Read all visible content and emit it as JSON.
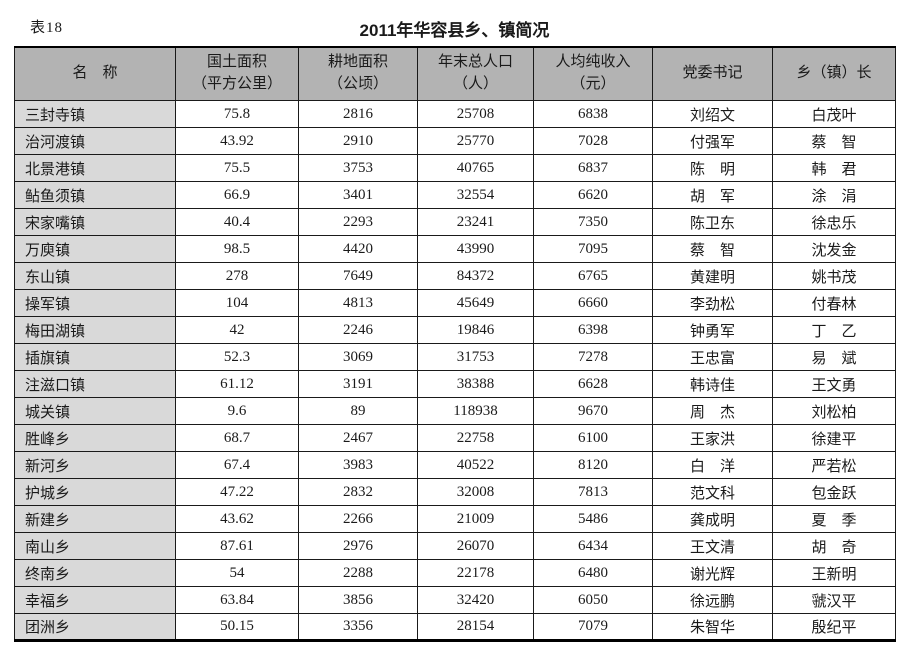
{
  "page": {
    "tag": "表18",
    "title": "2011年华容县乡、镇简况"
  },
  "colors": {
    "header_bg": "#b3b3b3",
    "name_column_bg": "#d9d9d9",
    "border": "#1a1a1a",
    "page_bg": "#ffffff"
  },
  "table": {
    "columns": [
      {
        "line1": "名　称",
        "line2": ""
      },
      {
        "line1": "国土面积",
        "line2": "（平方公里）"
      },
      {
        "line1": "耕地面积",
        "line2": "（公顷）"
      },
      {
        "line1": "年末总人口",
        "line2": "（人）"
      },
      {
        "line1": "人均纯收入",
        "line2": "（元）"
      },
      {
        "line1": "党委书记",
        "line2": ""
      },
      {
        "line1": "乡（镇）长",
        "line2": ""
      }
    ],
    "rows": [
      [
        "三封寺镇",
        "75.8",
        "2816",
        "25708",
        "6838",
        "刘绍文",
        "白茂叶"
      ],
      [
        "治河渡镇",
        "43.92",
        "2910",
        "25770",
        "7028",
        "付强军",
        "蔡　智"
      ],
      [
        "北景港镇",
        "75.5",
        "3753",
        "40765",
        "6837",
        "陈　明",
        "韩　君"
      ],
      [
        "鲇鱼须镇",
        "66.9",
        "3401",
        "32554",
        "6620",
        "胡　军",
        "涂　涓"
      ],
      [
        "宋家嘴镇",
        "40.4",
        "2293",
        "23241",
        "7350",
        "陈卫东",
        "徐忠乐"
      ],
      [
        "万庾镇",
        "98.5",
        "4420",
        "43990",
        "7095",
        "蔡　智",
        "沈发金"
      ],
      [
        "东山镇",
        "278",
        "7649",
        "84372",
        "6765",
        "黄建明",
        "姚书茂"
      ],
      [
        "操军镇",
        "104",
        "4813",
        "45649",
        "6660",
        "李劲松",
        "付春林"
      ],
      [
        "梅田湖镇",
        "42",
        "2246",
        "19846",
        "6398",
        "钟勇军",
        "丁　乙"
      ],
      [
        "插旗镇",
        "52.3",
        "3069",
        "31753",
        "7278",
        "王忠富",
        "易　斌"
      ],
      [
        "注滋口镇",
        "61.12",
        "3191",
        "38388",
        "6628",
        "韩诗佳",
        "王文勇"
      ],
      [
        "城关镇",
        "9.6",
        "89",
        "118938",
        "9670",
        "周　杰",
        "刘松柏"
      ],
      [
        "胜峰乡",
        "68.7",
        "2467",
        "22758",
        "6100",
        "王家洪",
        "徐建平"
      ],
      [
        "新河乡",
        "67.4",
        "3983",
        "40522",
        "8120",
        "白　洋",
        "严若松"
      ],
      [
        "护城乡",
        "47.22",
        "2832",
        "32008",
        "7813",
        "范文科",
        "包金跃"
      ],
      [
        "新建乡",
        "43.62",
        "2266",
        "21009",
        "5486",
        "龚成明",
        "夏　季"
      ],
      [
        "南山乡",
        "87.61",
        "2976",
        "26070",
        "6434",
        "王文清",
        "胡　奇"
      ],
      [
        "终南乡",
        "54",
        "2288",
        "22178",
        "6480",
        "谢光辉",
        "王新明"
      ],
      [
        "幸福乡",
        "63.84",
        "3856",
        "32420",
        "6050",
        "徐远鹏",
        "虢汉平"
      ],
      [
        "团洲乡",
        "50.15",
        "3356",
        "28154",
        "7079",
        "朱智华",
        "殷纪平"
      ]
    ]
  }
}
